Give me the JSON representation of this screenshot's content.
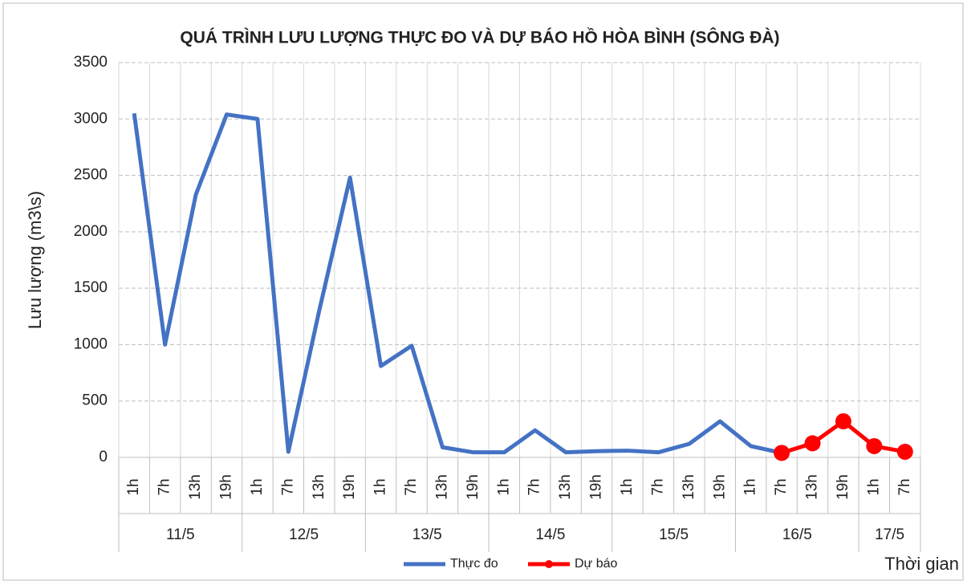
{
  "chart_data": {
    "type": "line",
    "title": "QUÁ TRÌNH LƯU LƯỢNG THỰC ĐO VÀ DỰ BÁO HỒ HÒA BÌNH (SÔNG ĐÀ)",
    "y_label": "Lưu lượng (m3\\s)",
    "x_label": "Thời gian",
    "groups": [
      {
        "label": "11/5",
        "categories": [
          "1h",
          "7h",
          "13h",
          "19h"
        ]
      },
      {
        "label": "12/5",
        "categories": [
          "1h",
          "7h",
          "13h",
          "19h"
        ]
      },
      {
        "label": "13/5",
        "categories": [
          "1h",
          "7h",
          "13h",
          "19h"
        ]
      },
      {
        "label": "14/5",
        "categories": [
          "1h",
          "7h",
          "13h",
          "19h"
        ]
      },
      {
        "label": "15/5",
        "categories": [
          "1h",
          "7h",
          "13h",
          "19h"
        ]
      },
      {
        "label": "16/5",
        "categories": [
          "1h",
          "7h",
          "13h",
          "19h"
        ]
      },
      {
        "label": "17/5",
        "categories": [
          "1h",
          "7h"
        ]
      }
    ],
    "series": [
      {
        "name": "Thực đo",
        "color": "#4472c4",
        "marker": false,
        "values": [
          3050,
          1000,
          2330,
          3040,
          3000,
          50,
          1300,
          2480,
          810,
          990,
          90,
          45,
          45,
          240,
          45,
          55,
          60,
          45,
          120,
          320,
          100,
          40,
          null,
          null,
          null,
          null
        ]
      },
      {
        "name": "Dự báo",
        "color": "#ff0000",
        "marker": true,
        "values": [
          null,
          null,
          null,
          null,
          null,
          null,
          null,
          null,
          null,
          null,
          null,
          null,
          null,
          null,
          null,
          null,
          null,
          null,
          null,
          null,
          null,
          40,
          125,
          320,
          100,
          50
        ]
      }
    ],
    "ylim": [
      0,
      3500
    ],
    "yticks": [
      0,
      500,
      1000,
      1500,
      2000,
      2500,
      3000,
      3500
    ],
    "grid": true
  }
}
